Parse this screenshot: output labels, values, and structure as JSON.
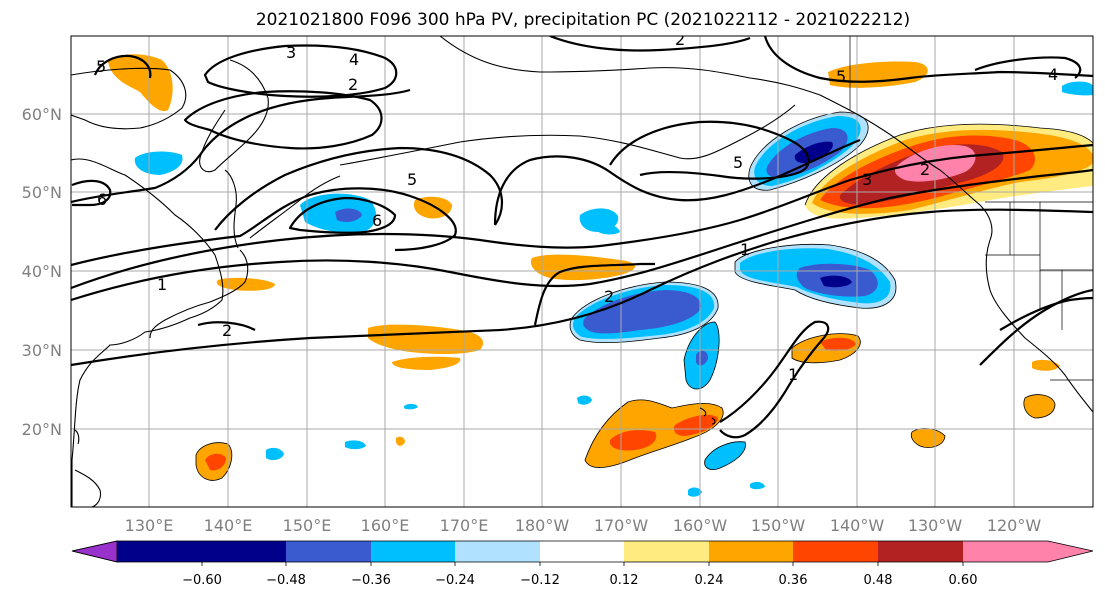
{
  "title": "2021021800 F096 300 hPa PV, precipitation PC (2021022112 - 2021022212)",
  "lat_labels": [
    "60°N",
    "50°N",
    "40°N",
    "30°N",
    "20°N"
  ],
  "lon_labels": [
    "130°E",
    "140°E",
    "150°E",
    "160°E",
    "170°E",
    "180°W",
    "170°W",
    "160°W",
    "150°W",
    "140°W",
    "130°W",
    "120°W"
  ],
  "contour_labels": [
    "3",
    "4",
    "2",
    "5",
    "6",
    "5",
    "6",
    "1",
    "2",
    "2",
    "1",
    "2",
    "5",
    "3",
    "2",
    "5",
    "4",
    "1"
  ],
  "colorbar": {
    "colors": [
      "#9932cc",
      "#00008b",
      "#3a5bcf",
      "#00bfff",
      "#b0e2ff",
      "#ffffff",
      "#ffeb7f",
      "#ffa500",
      "#ff4500",
      "#b22222",
      "#ff82ab"
    ],
    "tick_labels": [
      "−0.60",
      "−0.48",
      "−0.36",
      "−0.24",
      "−0.12",
      "0.12",
      "0.24",
      "0.36",
      "0.48",
      "0.60"
    ]
  },
  "fills": {
    "pink": "#ff82ab",
    "darkred": "#b22222",
    "red": "#ff4500",
    "orange": "#ffa500",
    "yellow": "#ffeb7f",
    "lightblue": "#b0e2ff",
    "skyblue": "#00bfff",
    "blue": "#3a5bcf",
    "navy": "#00008b"
  }
}
